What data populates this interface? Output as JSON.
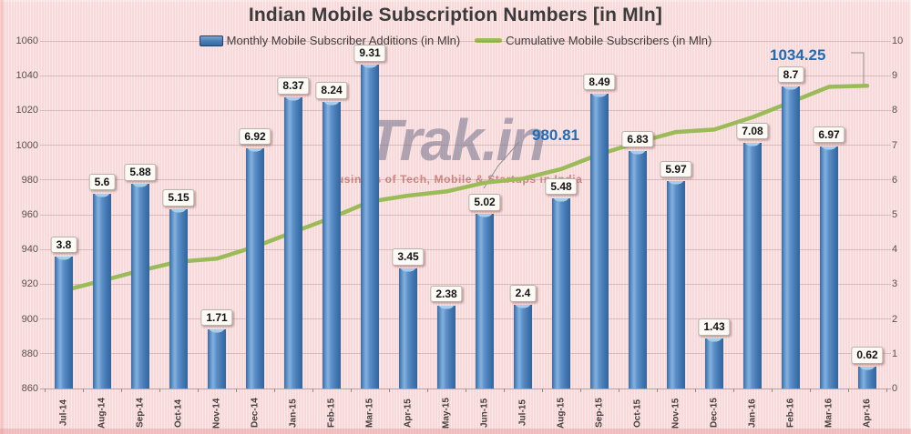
{
  "title": "Indian Mobile Subscription Numbers [in Mln]",
  "legend": [
    {
      "label": "Monthly Mobile Subscriber Additions (in Mln)",
      "marker": "bar-swatch-icon",
      "color": "#4f81bd"
    },
    {
      "label": "Cumulative Mobile Subscribers (in Mln)",
      "marker": "line-swatch-icon",
      "color": "#9bbb59"
    }
  ],
  "watermark": {
    "brand": "Trak.in",
    "tagline": "Business of Tech, Mobile & Startups in India"
  },
  "annotations": [
    {
      "text": "980.81",
      "series": "Cumulative Mobile Subscribers (in Mln)",
      "category": "Jul-15",
      "color": "#1f6db7"
    },
    {
      "text": "1034.25",
      "series": "Cumulative Mobile Subscribers (in Mln)",
      "category": "Apr-16",
      "color": "#1f6db7"
    }
  ],
  "chart_data": {
    "type": "bar",
    "subtype": "bar+line combo, dual y-axis",
    "title": "Indian Mobile Subscription Numbers [in Mln]",
    "categories": [
      "Jul-14",
      "Aug-14",
      "Sep-14",
      "Oct-14",
      "Nov-14",
      "Dec-14",
      "Jan-15",
      "Feb-15",
      "Mar-15",
      "Apr-15",
      "May-15",
      "Jun-15",
      "Jul-15",
      "Aug-15",
      "Sep-15",
      "Oct-15",
      "Nov-15",
      "Dec-15",
      "Jan-16",
      "Feb-16",
      "Mar-16",
      "Apr-16"
    ],
    "series": [
      {
        "name": "Monthly Mobile Subscriber Additions (in Mln)",
        "type": "bar",
        "axis": "right",
        "color": "#4f81bd",
        "values": [
          3.8,
          5.6,
          5.88,
          5.15,
          1.71,
          6.92,
          8.37,
          8.24,
          9.31,
          3.45,
          2.38,
          5.02,
          2.4,
          5.48,
          8.49,
          6.83,
          5.97,
          1.43,
          7.08,
          8.7,
          6.97,
          0.62
        ]
      },
      {
        "name": "Cumulative Mobile Subscribers (in Mln)",
        "type": "line",
        "axis": "left",
        "color": "#9bbb59",
        "values": [
          916.38,
          921.98,
          927.86,
          933.01,
          934.72,
          941.64,
          950.01,
          958.25,
          967.56,
          971.01,
          973.39,
          978.41,
          980.81,
          986.29,
          994.78,
          1001.61,
          1007.58,
          1009.01,
          1016.09,
          1024.79,
          1033.63,
          1034.25
        ],
        "labeled_points": [
          {
            "category": "Jul-15",
            "value": 980.81
          },
          {
            "category": "Apr-16",
            "value": 1034.25
          }
        ]
      }
    ],
    "left_axis": {
      "min": 860,
      "max": 1060,
      "step": 20,
      "ticks": [
        "860",
        "880",
        "900",
        "920",
        "940",
        "960",
        "980",
        "1000",
        "1020",
        "1040",
        "1060"
      ]
    },
    "right_axis": {
      "min": 0,
      "max": 10,
      "step": 1,
      "ticks": [
        "0",
        "1",
        "2",
        "3",
        "4",
        "5",
        "6",
        "7",
        "8",
        "9",
        "10"
      ]
    },
    "grid": "horizontal gridlines on",
    "legend_position": "top",
    "data_labels": "shown above each bar",
    "plot_bg": "#f8d8d8"
  }
}
